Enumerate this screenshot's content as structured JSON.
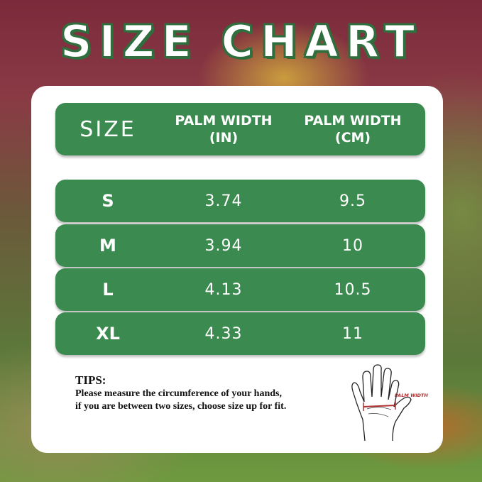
{
  "title": "SIZE CHART",
  "colors": {
    "table_green": "#3b8a4f",
    "title_outline": "#2f6e3d",
    "palm_line": "#b03030"
  },
  "table": {
    "headers": {
      "size": "SIZE",
      "in_line1": "PALM WIDTH",
      "in_line2": "(IN)",
      "cm_line1": "PALM WIDTH",
      "cm_line2": "(CM)"
    },
    "rows": [
      {
        "size": "S",
        "in": "3.74",
        "cm": "9.5"
      },
      {
        "size": "M",
        "in": "3.94",
        "cm": "10"
      },
      {
        "size": "L",
        "in": "4.13",
        "cm": "10.5"
      },
      {
        "size": "XL",
        "in": "4.33",
        "cm": "11"
      }
    ]
  },
  "tips": {
    "heading": "TIPS:",
    "line1": "Please measure the circumference of your hands,",
    "line2": "if you are between two sizes, choose size up for fit."
  },
  "hand_diagram": {
    "label": "PALM WIDTH",
    "icon": "hand-outline-icon"
  }
}
